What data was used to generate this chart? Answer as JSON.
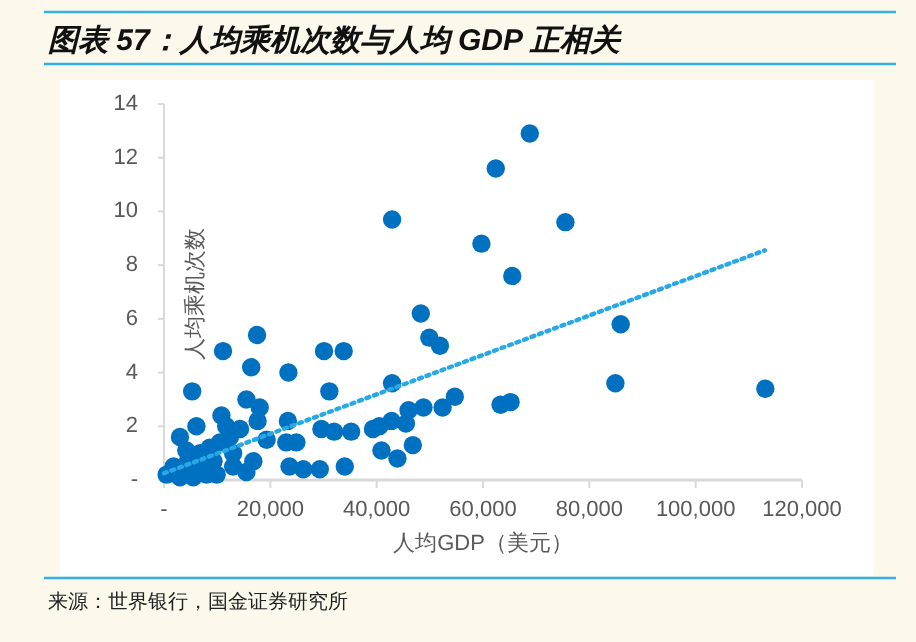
{
  "chart_data": {
    "type": "scatter",
    "title": "图表 57：人均乘机次数与人均 GDP 正相关",
    "xlabel": "人均GDP（美元）",
    "ylabel": "人均乘机次数",
    "annotations": [
      "来源：世界银行，国金证券研究所"
    ],
    "xlim": [
      0,
      120000
    ],
    "ylim": [
      0,
      14
    ],
    "xticks": [
      {
        "value": 0,
        "label": "-"
      },
      {
        "value": 20000,
        "label": "20,000"
      },
      {
        "value": 40000,
        "label": "40,000"
      },
      {
        "value": 60000,
        "label": "60,000"
      },
      {
        "value": 80000,
        "label": "80,000"
      },
      {
        "value": 100000,
        "label": "100,000"
      },
      {
        "value": 120000,
        "label": "120,000"
      }
    ],
    "yticks": [
      {
        "value": 0,
        "label": "-"
      },
      2,
      4,
      6,
      8,
      10,
      12,
      14
    ],
    "grid": false,
    "series": [
      {
        "color": "#0070c0",
        "marker": "circle",
        "x": [
          68800,
          62400,
          42900,
          75500,
          59700,
          65500,
          48300,
          49900,
          51900,
          85900,
          84900,
          113100,
          42900,
          63300,
          65200,
          54700,
          52400,
          48800,
          46000,
          45500,
          42800,
          40500,
          46800,
          40900,
          43900,
          17500,
          11100,
          30100,
          33800,
          5300,
          16400,
          23400,
          31100,
          18000,
          15500,
          6100,
          10800,
          11700,
          3000,
          14300,
          17600,
          23300,
          19300,
          23000,
          24900,
          29600,
          32000,
          35200,
          39300,
          23600,
          26200,
          29300,
          34000,
          16800,
          15500,
          13000,
          9900,
          500,
          1800,
          4200,
          6800,
          8600,
          10500,
          4200,
          6800,
          3000,
          5500,
          8000,
          9300,
          13000,
          12400
        ],
        "values": [
          12.9,
          11.6,
          9.7,
          9.6,
          8.8,
          7.6,
          6.2,
          5.3,
          5.0,
          5.8,
          3.6,
          3.4,
          3.6,
          2.8,
          2.9,
          3.1,
          2.7,
          2.7,
          2.6,
          2.1,
          2.2,
          2.0,
          1.3,
          1.1,
          0.8,
          5.4,
          4.8,
          4.8,
          4.8,
          3.3,
          4.2,
          4.0,
          3.3,
          2.7,
          3.0,
          2.0,
          2.4,
          2.0,
          1.6,
          1.9,
          2.2,
          2.2,
          1.5,
          1.4,
          1.4,
          1.9,
          1.8,
          1.8,
          1.9,
          0.5,
          0.4,
          0.4,
          0.5,
          0.7,
          0.3,
          0.5,
          0.2,
          0.2,
          0.5,
          0.6,
          1.0,
          1.2,
          1.4,
          1.1,
          0.4,
          0.1,
          0.1,
          0.2,
          0.7,
          1.0,
          1.6
        ]
      },
      {
        "type": "line",
        "color": "#29a8e8",
        "line_style": "dotted",
        "marker": "none",
        "x": [
          0,
          113000
        ],
        "values": [
          0.25,
          8.55
        ]
      }
    ]
  }
}
